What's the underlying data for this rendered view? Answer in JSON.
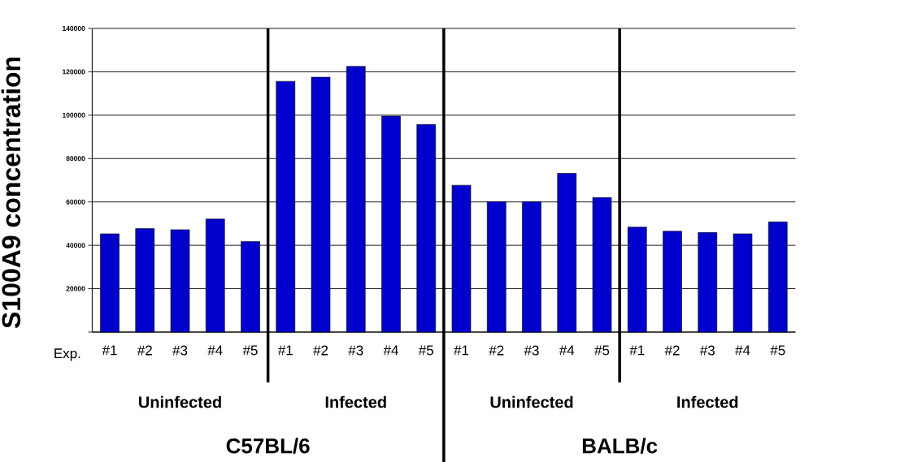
{
  "chart_data": {
    "type": "bar",
    "ylabel": "S100A9 concentration",
    "categories": [
      "#1",
      "#2",
      "#3",
      "#4",
      "#5",
      "#1",
      "#2",
      "#3",
      "#4",
      "#5",
      "#1",
      "#2",
      "#3",
      "#4",
      "#5",
      "#1",
      "#2",
      "#3",
      "#4",
      "#5"
    ],
    "values": [
      45300,
      47700,
      47200,
      52100,
      41700,
      115600,
      117500,
      122500,
      99600,
      95700,
      67700,
      60100,
      60100,
      73200,
      62000,
      48400,
      46500,
      45900,
      45300,
      50800
    ],
    "color": "#0000cc",
    "ylim": [
      0,
      140000
    ],
    "yticks": [
      {
        "value": 0,
        "label": null
      },
      20000,
      40000,
      60000,
      80000,
      100000,
      120000,
      140000
    ],
    "grid": "y",
    "annotations": [
      "Exp.",
      "Uninfected",
      "Infected",
      "Uninfected",
      "Infected",
      "C57BL/6",
      "BALB/c"
    ]
  }
}
